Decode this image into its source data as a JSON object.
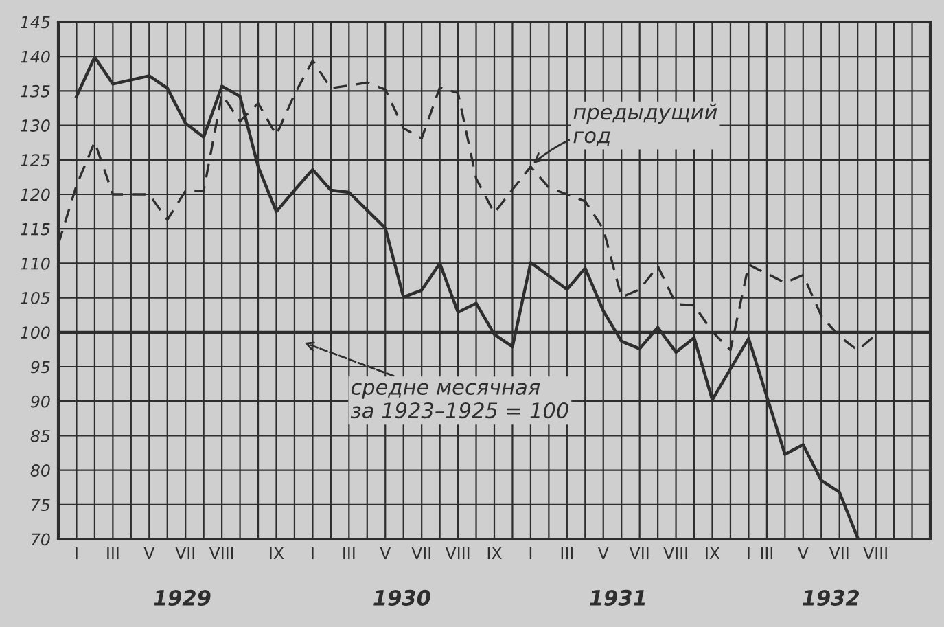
{
  "chart_data": {
    "type": "line",
    "categories": [
      null,
      "I",
      null,
      "III",
      null,
      "V",
      null,
      "VII",
      null,
      "VIII",
      null,
      null,
      "IX",
      null,
      "I",
      null,
      "III",
      null,
      "V",
      null,
      "VII",
      null,
      "VIII",
      null,
      "IX",
      null,
      "I",
      null,
      "III",
      null,
      "V",
      null,
      "VII",
      null,
      "VIII",
      null,
      "IX",
      null,
      "I",
      "III",
      null,
      "V",
      null,
      "VII",
      null,
      "VIII",
      null,
      null,
      null
    ],
    "series": [
      {
        "color": "#2e2e2e",
        "line_style": "solid",
        "values": [
          null,
          134.2,
          139.9,
          136.0,
          136.6,
          137.2,
          135.4,
          130.3,
          128.3,
          135.7,
          134.2,
          124.0,
          117.5,
          120.6,
          123.6,
          120.6,
          120.3,
          117.7,
          115.1,
          105.1,
          106.1,
          110.0,
          102.9,
          104.2,
          99.7,
          97.9,
          110.1,
          108.2,
          106.2,
          109.3,
          103.1,
          98.7,
          97.6,
          100.7,
          97.1,
          99.2,
          90.2,
          94.7,
          99.1,
          90.7,
          82.3,
          83.7,
          78.5,
          76.8,
          70.2,
          null,
          null,
          null,
          null
        ]
      },
      {
        "color": "#2e2e2e",
        "line_style": "dashed",
        "values": [
          112.8,
          121.3,
          127.6,
          120.0,
          120.0,
          120.0,
          116.3,
          120.5,
          120.5,
          134.5,
          130.6,
          133.2,
          128.6,
          134.5,
          139.4,
          135.4,
          135.8,
          136.2,
          135.2,
          129.6,
          128.1,
          135.5,
          134.7,
          122.3,
          117.3,
          120.7,
          124.0,
          121.0,
          120.0,
          119.0,
          115.0,
          105.1,
          106.2,
          109.6,
          104.1,
          103.9,
          100.1,
          97.4,
          109.8,
          108.5,
          107.2,
          108.3,
          102.4,
          99.4,
          97.4,
          99.6,
          null,
          null,
          null
        ]
      }
    ],
    "ylim": [
      70,
      145
    ],
    "yticks": [
      70,
      75,
      80,
      85,
      90,
      95,
      100,
      105,
      110,
      115,
      120,
      125,
      130,
      135,
      140,
      145
    ],
    "grid": true,
    "ref_lines": [
      {
        "axis": "y",
        "value": 100,
        "color": "#2e2e2e",
        "line_style": "solid"
      }
    ],
    "annotations": [
      "предыдущий\nгод",
      "средне месячная\nза 1923–1925 = 100",
      "1929",
      "1930",
      "1931",
      "1932"
    ]
  }
}
